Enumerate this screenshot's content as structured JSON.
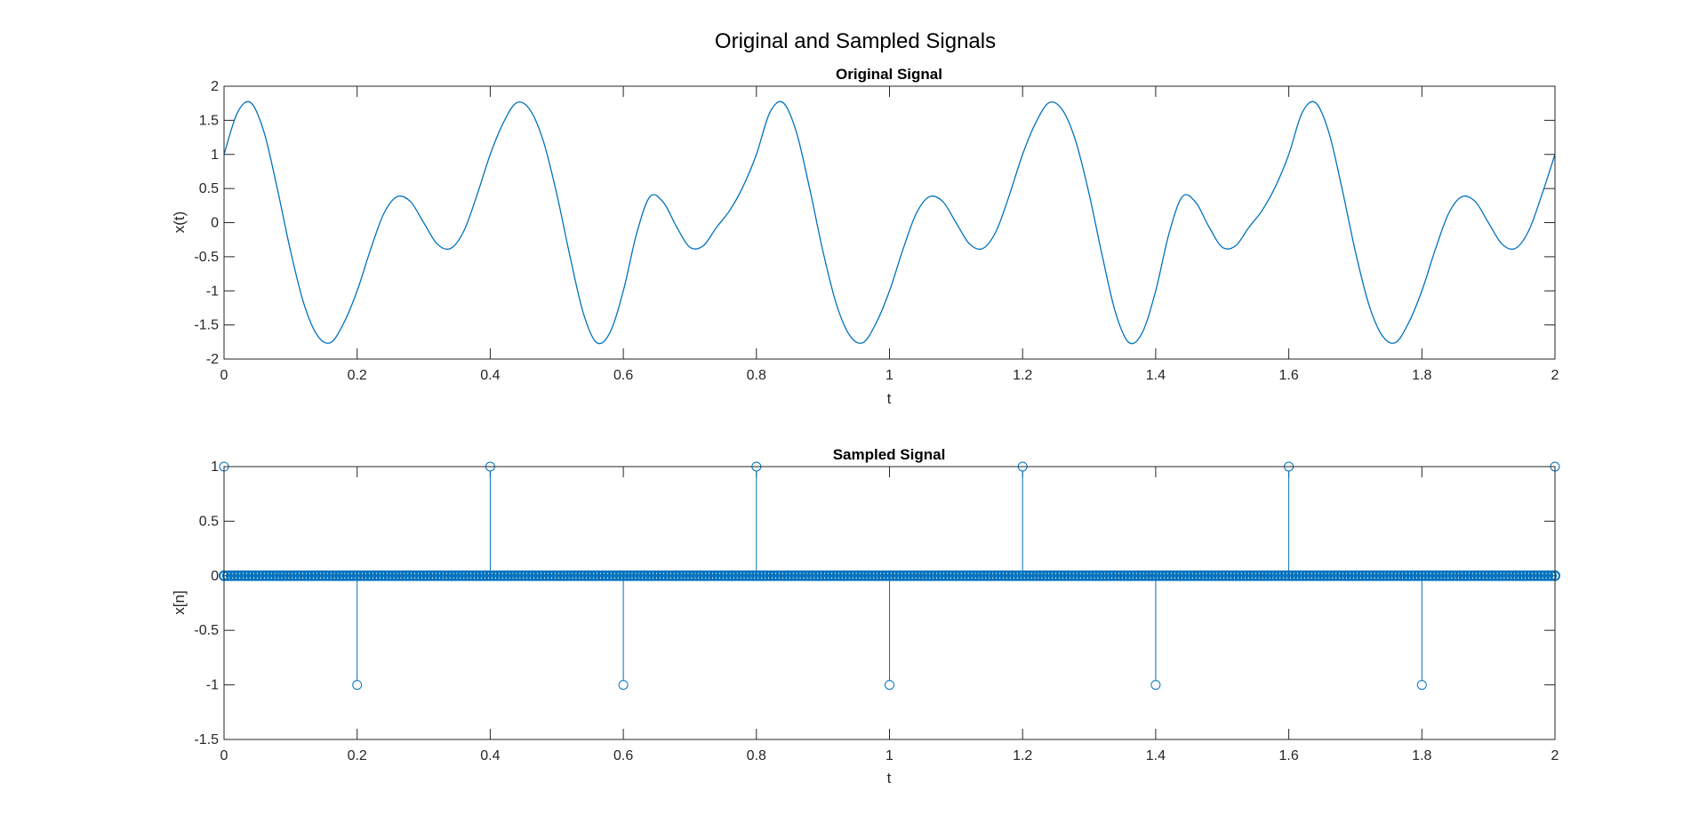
{
  "figure": {
    "title": "Original and Sampled Signals",
    "line_color": "#0072BD",
    "axes_color": "#262626",
    "background": "#ffffff"
  },
  "chart_data": [
    {
      "type": "line",
      "title": "Original Signal",
      "xlabel": "t",
      "ylabel": "x(t)",
      "xlim": [
        0,
        2
      ],
      "ylim": [
        -2,
        2
      ],
      "xticks": [
        0,
        0.2,
        0.4,
        0.6,
        0.8,
        1,
        1.2,
        1.4,
        1.6,
        1.8,
        2
      ],
      "yticks": [
        -2,
        -1.5,
        -1,
        -0.5,
        0,
        0.5,
        1,
        1.5,
        2
      ],
      "xtick_labels": [
        "0",
        "0.2",
        "0.4",
        "0.6",
        "0.8",
        "1",
        "1.2",
        "1.4",
        "1.6",
        "1.8",
        "2"
      ],
      "ytick_labels": [
        "-2",
        "-1.5",
        "-1",
        "-0.5",
        "0",
        "0.5",
        "1",
        "1.5",
        "2"
      ],
      "grid": false,
      "series": [
        {
          "x": [
            0,
            0.02,
            0.04,
            0.06,
            0.08,
            0.1,
            0.12,
            0.14,
            0.16,
            0.18,
            0.2,
            0.22,
            0.24,
            0.26,
            0.28,
            0.3,
            0.32,
            0.34,
            0.36,
            0.38,
            0.4,
            0.42,
            0.44,
            0.46,
            0.48,
            0.5,
            0.52,
            0.54,
            0.56,
            0.58,
            0.6,
            0.62,
            0.64,
            0.66,
            0.68,
            0.7,
            0.72,
            0.74,
            0.76,
            0.78,
            0.8,
            0.82,
            0.84,
            0.86,
            0.88,
            0.9,
            0.92,
            0.94,
            0.96,
            0.98,
            1,
            1.02,
            1.04,
            1.06,
            1.08,
            1.1,
            1.12,
            1.14,
            1.16,
            1.18,
            1.2,
            1.22,
            1.24,
            1.26,
            1.28,
            1.3,
            1.32,
            1.34,
            1.36,
            1.38,
            1.4,
            1.42,
            1.44,
            1.46,
            1.48,
            1.5,
            1.52,
            1.54,
            1.56,
            1.58,
            1.6,
            1.62,
            1.64,
            1.66,
            1.68,
            1.7,
            1.72,
            1.74,
            1.76,
            1.78,
            1.8,
            1.82,
            1.84,
            1.86,
            1.88,
            1.9,
            1.92,
            1.94,
            1.96,
            1.98,
            2
          ],
          "y": [
            1.0,
            1.61,
            1.76,
            1.33,
            0.5,
            -0.42,
            -1.19,
            -1.65,
            -1.76,
            -1.47,
            -1.0,
            -0.4,
            0.13,
            0.38,
            0.31,
            0.0,
            -0.31,
            -0.38,
            -0.13,
            0.4,
            1.0,
            1.47,
            1.76,
            1.65,
            1.19,
            0.42,
            -0.5,
            -1.33,
            -1.76,
            -1.61,
            -1.0,
            -0.16,
            0.38,
            0.3,
            -0.06,
            -0.36,
            -0.34,
            -0.07,
            0.18,
            0.53,
            1.0,
            1.61,
            1.76,
            1.33,
            0.5,
            -0.42,
            -1.19,
            -1.65,
            -1.76,
            -1.47,
            -1.0,
            -0.4,
            0.13,
            0.38,
            0.31,
            0.0,
            -0.31,
            -0.38,
            -0.13,
            0.4,
            1.0,
            1.47,
            1.76,
            1.65,
            1.19,
            0.42,
            -0.5,
            -1.33,
            -1.76,
            -1.61,
            -1.0,
            -0.16,
            0.38,
            0.3,
            -0.06,
            -0.36,
            -0.34,
            -0.07,
            0.18,
            0.53,
            1.0,
            1.61,
            1.76,
            1.33,
            0.5,
            -0.42,
            -1.19,
            -1.65,
            -1.76,
            -1.47,
            -1.0,
            -0.4,
            0.13,
            0.38,
            0.31,
            0.0,
            -0.31,
            -0.38,
            -0.13,
            0.4,
            1.0
          ]
        }
      ]
    },
    {
      "type": "stem",
      "title": "Sampled Signal",
      "xlabel": "t",
      "ylabel": "x[n]",
      "xlim": [
        0,
        2
      ],
      "ylim": [
        -1.5,
        1
      ],
      "xticks": [
        0,
        0.2,
        0.4,
        0.6,
        0.8,
        1,
        1.2,
        1.4,
        1.6,
        1.8,
        2
      ],
      "yticks": [
        -1.5,
        -1,
        -0.5,
        0,
        0.5,
        1
      ],
      "xtick_labels": [
        "0",
        "0.2",
        "0.4",
        "0.6",
        "0.8",
        "1",
        "1.2",
        "1.4",
        "1.6",
        "1.8",
        "2"
      ],
      "ytick_labels": [
        "-1.5",
        "-1",
        "-0.5",
        "0",
        "0.5",
        "1"
      ],
      "grid": false,
      "nonzero_samples": {
        "x": [
          0,
          0.2,
          0.4,
          0.6,
          0.8,
          1.0,
          1.2,
          1.4,
          1.6,
          1.8,
          2.0
        ],
        "y": [
          1,
          -1,
          1,
          -1,
          1,
          -1,
          1,
          -1,
          1,
          -1,
          1
        ]
      },
      "zero_samples": {
        "x_start": 0,
        "x_end": 2,
        "count": 381,
        "y": 0
      }
    }
  ]
}
